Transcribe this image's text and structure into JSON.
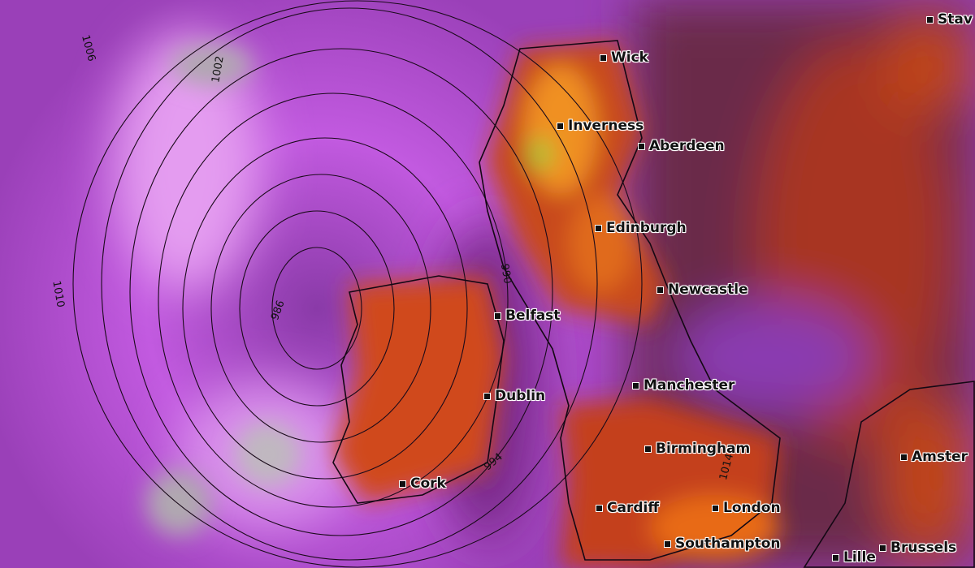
{
  "map": {
    "type": "weather forecast map",
    "region": "British Isles and North-West Europe",
    "colors": {
      "low_wind": "#b44ad8",
      "mid": "#7a2c5a",
      "high": "#d8401a",
      "peak": "#f5a020",
      "max": "#7ac030",
      "calm": "#b0b0b0"
    },
    "cities": [
      {
        "name": "Stav"
      },
      {
        "name": "Wick"
      },
      {
        "name": "Inverness"
      },
      {
        "name": "Aberdeen"
      },
      {
        "name": "Edinburgh"
      },
      {
        "name": "Newcastle"
      },
      {
        "name": "Belfast"
      },
      {
        "name": "Manchester"
      },
      {
        "name": "Dublin"
      },
      {
        "name": "Birmingham"
      },
      {
        "name": "Amster"
      },
      {
        "name": "Cork"
      },
      {
        "name": "Cardiff"
      },
      {
        "name": "London"
      },
      {
        "name": "Southampton"
      },
      {
        "name": "Brussels"
      },
      {
        "name": "Lille"
      }
    ],
    "isobar_labels": [
      "1006",
      "1002",
      "1010",
      "986",
      "990",
      "994",
      "1014"
    ]
  }
}
